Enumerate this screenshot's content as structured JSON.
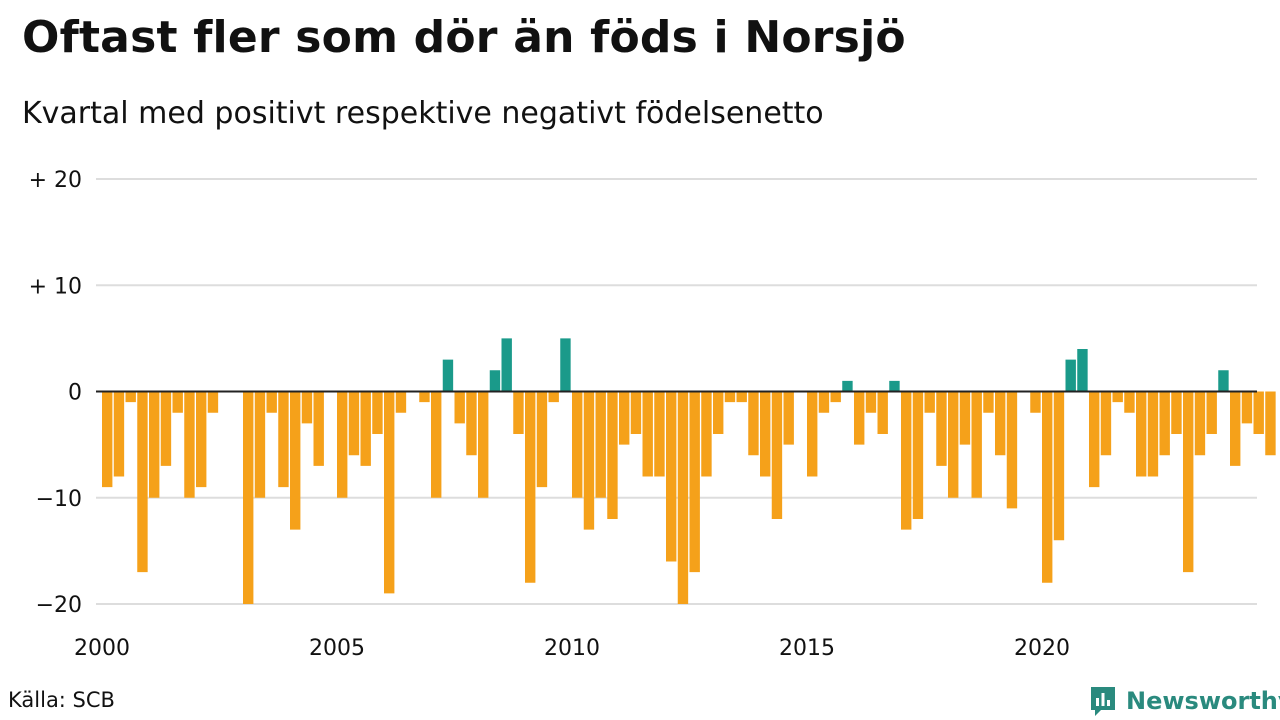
{
  "title": "Oftast fler som dör än föds i Norsjö",
  "subtitle": "Kvartal med positivt respektive negativt födelsenetto",
  "source": "Källa: SCB",
  "brand": "Newsworthy",
  "colors": {
    "positive": "#1a9a8a",
    "negative": "#f5a11a",
    "grid": "#dddddd",
    "brand": "#2a8a7e"
  },
  "icons": {
    "logo": "newsworthy-chart-icon"
  },
  "chart_data": {
    "type": "bar",
    "title": "Oftast fler som dör än föds i Norsjö",
    "subtitle": "Kvartal med positivt respektive negativt födelsenetto",
    "xlabel": "",
    "ylabel": "",
    "ylim": [
      -20,
      20
    ],
    "xlim": [
      2000,
      2024.75
    ],
    "grid": true,
    "y_ticks": [
      {
        "value": 20,
        "label": "+ 20"
      },
      {
        "value": 10,
        "label": "+ 10"
      },
      {
        "value": 0,
        "label": "0"
      },
      {
        "value": -10,
        "label": "−10"
      },
      {
        "value": -20,
        "label": "−20"
      }
    ],
    "x_ticks": [
      {
        "value": 2000,
        "label": "2000"
      },
      {
        "value": 2005,
        "label": "2005"
      },
      {
        "value": 2010,
        "label": "2010"
      },
      {
        "value": 2015,
        "label": "2015"
      },
      {
        "value": 2020,
        "label": "2020"
      }
    ],
    "start_year": 2000,
    "quarters_per_year": 4,
    "values": [
      -9,
      -8,
      -1,
      -17,
      -10,
      -7,
      -2,
      -10,
      -9,
      -2,
      0,
      0,
      -20,
      -10,
      -2,
      -9,
      -13,
      -3,
      -7,
      0,
      -10,
      -6,
      -7,
      -4,
      -19,
      -2,
      0,
      -1,
      -10,
      3,
      -3,
      -6,
      -10,
      2,
      5,
      -4,
      -18,
      -9,
      -1,
      5,
      -10,
      -13,
      -10,
      -12,
      -5,
      -4,
      -8,
      -8,
      -16,
      -20,
      -17,
      -8,
      -4,
      -1,
      -1,
      -6,
      -8,
      -12,
      -5,
      0,
      -8,
      -2,
      -1,
      1,
      -5,
      -2,
      -4,
      1,
      -13,
      -12,
      -2,
      -7,
      -10,
      -5,
      -10,
      -2,
      -6,
      -11,
      0,
      -2,
      -18,
      -14,
      3,
      4,
      -9,
      -6,
      -1,
      -2,
      -8,
      -8,
      -6,
      -4,
      -17,
      -6,
      -4,
      2,
      -7,
      -3,
      -4,
      -6
    ]
  }
}
